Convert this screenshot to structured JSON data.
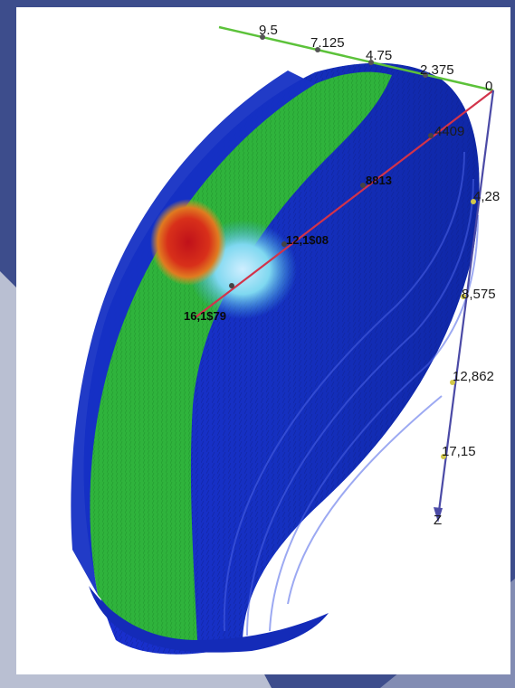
{
  "colors": {
    "slide_background": "#3d4d8c",
    "viewport_background": "#ffffff",
    "x_axis": "#5cc23a",
    "y_axis": "#d2334a",
    "z_axis": "#4b4aa6",
    "mesh_low": "#1029c8",
    "mesh_mid": "#2fbf3a",
    "mesh_high": "#d8161a"
  },
  "axes": {
    "x": {
      "ticks": [
        "9.5",
        "7.125",
        "4.75",
        "2.375"
      ]
    },
    "origin": "0",
    "y": {
      "ticks": [
        "4409",
        "8813",
        "12,1$08",
        "16,1$79"
      ]
    },
    "z": {
      "ticks": [
        "4,28",
        "8,575",
        "12,862",
        "17,15"
      ],
      "end_label": "Z"
    }
  }
}
